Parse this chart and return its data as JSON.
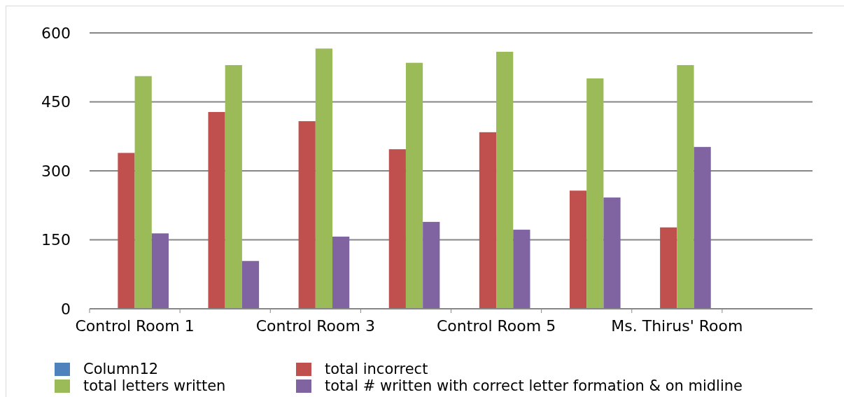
{
  "chart_data": {
    "type": "bar",
    "categories": [
      "Control Room 1",
      null,
      "Control Room 3",
      null,
      "Control Room 5",
      null,
      "Ms. Thirus' Room",
      null
    ],
    "series": [
      {
        "name": "Column12",
        "color": "#4f81bd",
        "values": [
          null,
          null,
          null,
          null,
          null,
          null,
          null,
          null
        ]
      },
      {
        "name": "total incorrect",
        "color": "#c0504d",
        "values": [
          339,
          428,
          408,
          347,
          384,
          257,
          177,
          null
        ]
      },
      {
        "name": "total letters written",
        "color": "#9bbb59",
        "values": [
          506,
          530,
          566,
          535,
          559,
          501,
          530,
          null
        ]
      },
      {
        "name": "total # written with correct letter formation & on midline",
        "color": "#8064a2",
        "values": [
          164,
          104,
          157,
          189,
          172,
          242,
          352,
          null
        ]
      }
    ],
    "ylim": [
      0,
      600
    ],
    "yticks": [
      0,
      150,
      300,
      450,
      600
    ],
    "grid": "y",
    "legend": "bottom"
  }
}
